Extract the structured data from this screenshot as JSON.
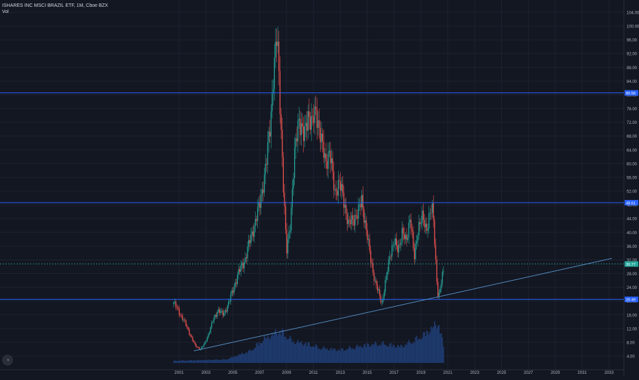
{
  "header": {
    "title": "ISHARES INC MSCI BRAZIL ETF, 1M, Cboe BZX",
    "volume_label": "Vol"
  },
  "colors": {
    "background": "#131722",
    "grid": "#1e2230",
    "up": "#26a69a",
    "down": "#ef5350",
    "level_line": "#2962ff",
    "trend_line": "#5b9bd5",
    "volume": "#1e3a6e",
    "axis_text": "#b2b5be"
  },
  "chart_data": {
    "type": "candlestick",
    "x_range": [
      2000.0,
      2033.2
    ],
    "y_range": [
      2.0,
      106.0
    ],
    "y_ticks": [
      "104.00",
      "100.00",
      "96.00",
      "92.00",
      "88.00",
      "84.00",
      "80.00",
      "76.00",
      "72.00",
      "68.00",
      "64.00",
      "60.00",
      "56.00",
      "52.00",
      "48.00",
      "44.00",
      "40.00",
      "36.00",
      "32.00",
      "28.00",
      "24.00",
      "20.00",
      "16.00",
      "12.00",
      "8.00",
      "4.00"
    ],
    "x_ticks": [
      "2001",
      "2003",
      "2005",
      "2007",
      "2009",
      "2011",
      "2013",
      "2015",
      "2017",
      "2019",
      "2021",
      "2023",
      "2025",
      "2027",
      "2029",
      "2031",
      "2033"
    ],
    "horizontal_levels": [
      {
        "label": "80.56",
        "value": 80.56
      },
      {
        "label": "48.61",
        "value": 48.61
      },
      {
        "label": "30.77",
        "value": 30.77,
        "kind": "last-price"
      },
      {
        "label": "20.49",
        "value": 20.49
      }
    ],
    "trend_line": {
      "from": {
        "date": 2002.1,
        "price": 5.5
      },
      "to": {
        "date": 2033.2,
        "price": 32.4
      }
    },
    "price_anchors": [
      [
        2000.6,
        19.5
      ],
      [
        2000.9,
        17.5
      ],
      [
        2001.4,
        14.0
      ],
      [
        2001.8,
        10.5
      ],
      [
        2002.2,
        7.0
      ],
      [
        2002.6,
        6.0
      ],
      [
        2002.9,
        7.5
      ],
      [
        2003.2,
        10.5
      ],
      [
        2003.5,
        14.0
      ],
      [
        2003.9,
        17.5
      ],
      [
        2004.3,
        16.0
      ],
      [
        2004.7,
        19.5
      ],
      [
        2005.0,
        23.0
      ],
      [
        2005.4,
        28.0
      ],
      [
        2005.9,
        32.0
      ],
      [
        2006.3,
        38.0
      ],
      [
        2006.6,
        42.0
      ],
      [
        2007.0,
        48.0
      ],
      [
        2007.5,
        60.0
      ],
      [
        2007.8,
        72.0
      ],
      [
        2008.0,
        85.0
      ],
      [
        2008.3,
        97.0
      ],
      [
        2008.5,
        80.0
      ],
      [
        2008.8,
        50.0
      ],
      [
        2009.0,
        34.0
      ],
      [
        2009.3,
        44.0
      ],
      [
        2009.6,
        62.0
      ],
      [
        2009.9,
        74.0
      ],
      [
        2010.3,
        67.0
      ],
      [
        2010.6,
        75.0
      ],
      [
        2010.9,
        71.0
      ],
      [
        2011.2,
        76.0
      ],
      [
        2011.6,
        66.0
      ],
      [
        2011.9,
        61.0
      ],
      [
        2012.2,
        63.0
      ],
      [
        2012.6,
        52.0
      ],
      [
        2012.9,
        54.0
      ],
      [
        2013.2,
        51.0
      ],
      [
        2013.6,
        42.0
      ],
      [
        2013.9,
        44.0
      ],
      [
        2014.3,
        45.0
      ],
      [
        2014.6,
        50.0
      ],
      [
        2014.9,
        41.0
      ],
      [
        2015.2,
        34.0
      ],
      [
        2015.6,
        25.0
      ],
      [
        2015.9,
        22.0
      ],
      [
        2016.1,
        19.5
      ],
      [
        2016.4,
        26.0
      ],
      [
        2016.7,
        34.0
      ],
      [
        2017.0,
        37.0
      ],
      [
        2017.3,
        35.0
      ],
      [
        2017.6,
        40.0
      ],
      [
        2017.9,
        37.0
      ],
      [
        2018.2,
        45.0
      ],
      [
        2018.5,
        32.0
      ],
      [
        2018.8,
        42.0
      ],
      [
        2019.1,
        44.0
      ],
      [
        2019.4,
        41.0
      ],
      [
        2019.7,
        46.0
      ],
      [
        2019.9,
        46.0
      ],
      [
        2020.15,
        28.0
      ],
      [
        2020.3,
        20.5
      ],
      [
        2020.55,
        26.0
      ],
      [
        2020.75,
        30.77
      ]
    ],
    "volume_anchors": [
      [
        2000.6,
        0.05
      ],
      [
        2004.5,
        0.08
      ],
      [
        2006.3,
        0.28
      ],
      [
        2007.3,
        0.55
      ],
      [
        2008.5,
        0.75
      ],
      [
        2009.5,
        0.5
      ],
      [
        2010.5,
        0.45
      ],
      [
        2011.5,
        0.35
      ],
      [
        2013.0,
        0.3
      ],
      [
        2015.0,
        0.42
      ],
      [
        2016.0,
        0.45
      ],
      [
        2017.5,
        0.38
      ],
      [
        2019.0,
        0.6
      ],
      [
        2019.8,
        0.8
      ],
      [
        2020.3,
        0.95
      ],
      [
        2020.75,
        0.3
      ]
    ],
    "volume_max_value": 16.5,
    "up_color": "#26a69a",
    "down_color": "#ef5350"
  }
}
